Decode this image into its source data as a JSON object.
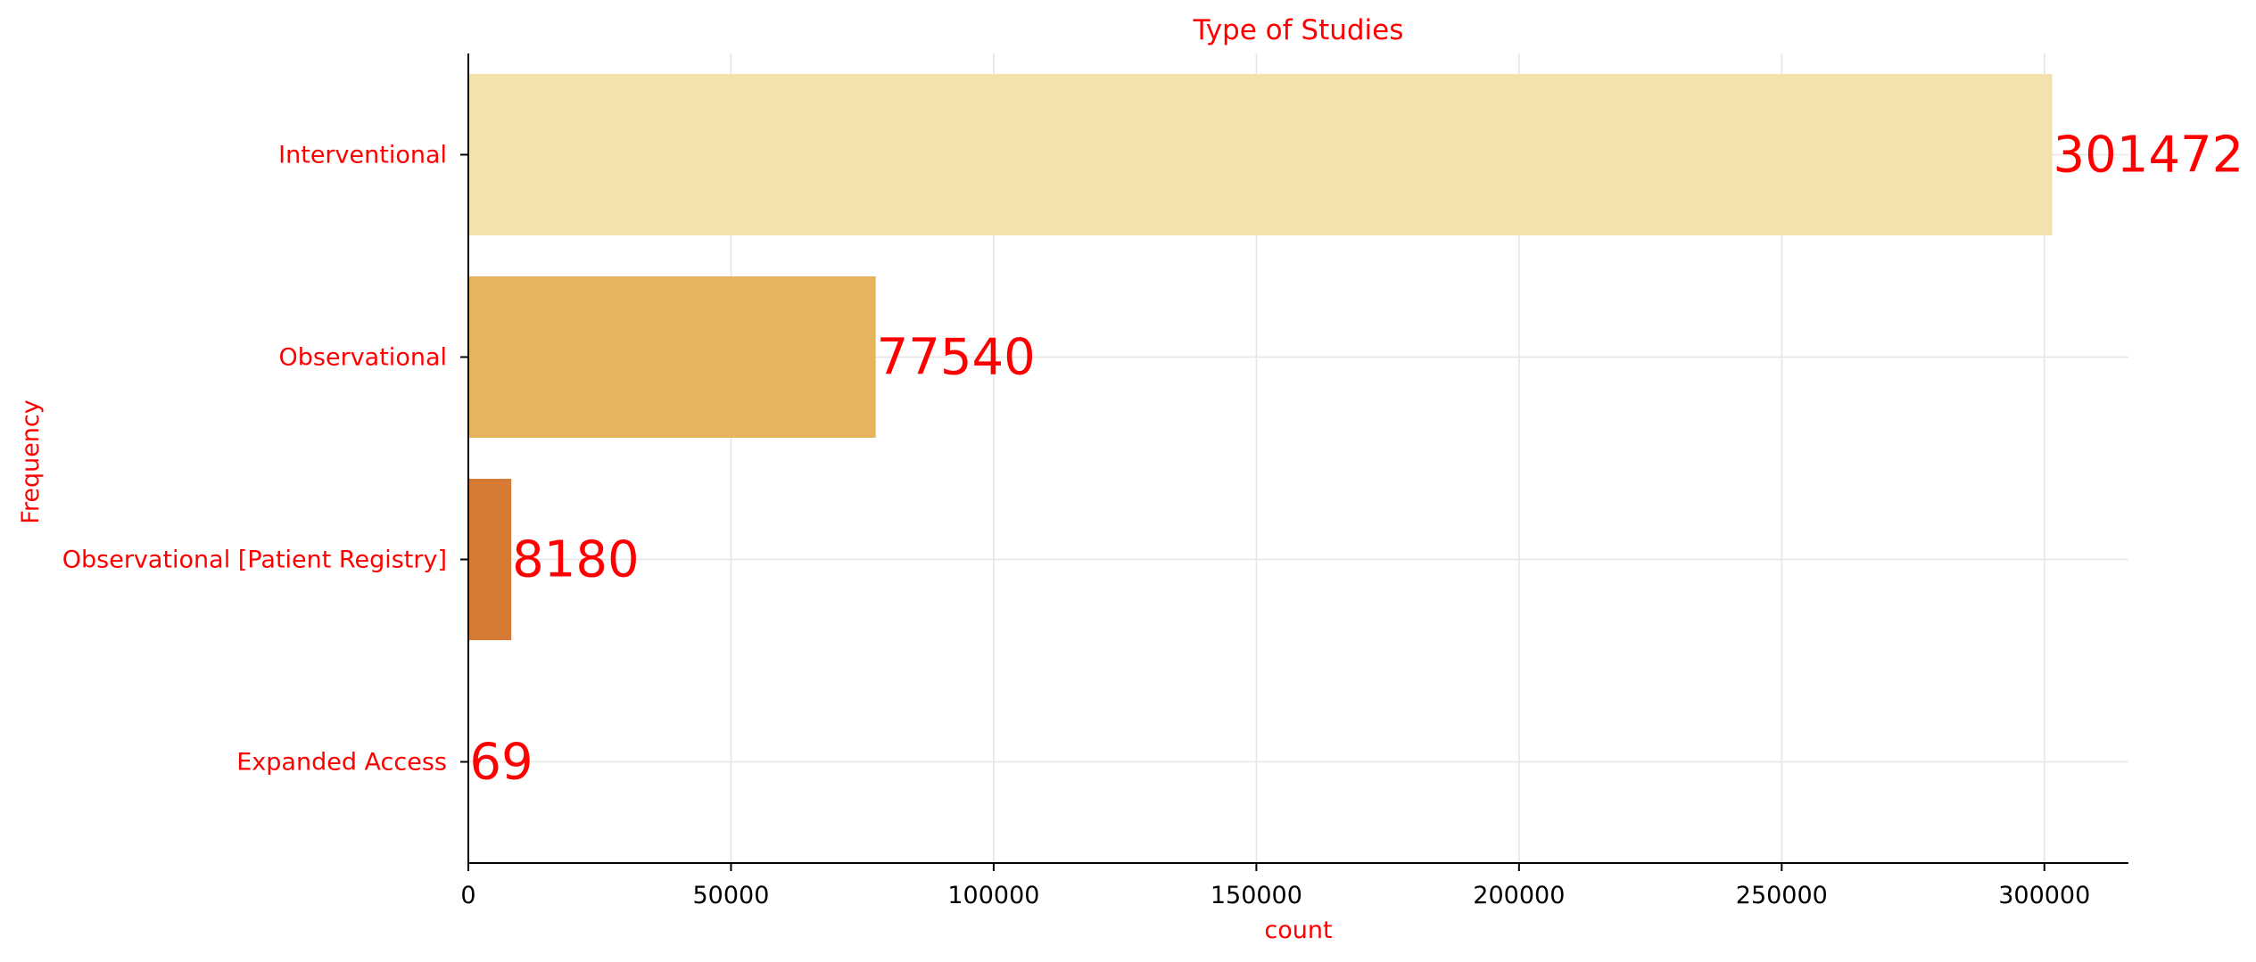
{
  "colors": {
    "text_accent": "#ff0000",
    "axis": "#000000",
    "grid": "#e6e6e6",
    "tick_text": "#000000",
    "bar_colors": [
      "#f2e3ad",
      "#e6b45f",
      "#d77a35",
      "#b74b2a"
    ]
  },
  "chart_data": {
    "type": "bar",
    "orientation": "horizontal",
    "title": "Type of Studies",
    "xlabel": "count",
    "ylabel": "Frequency",
    "categories": [
      "Interventional",
      "Observational",
      "Observational [Patient Registry]",
      "Expanded Access"
    ],
    "values": [
      301472,
      77540,
      8180,
      69
    ],
    "data_labels": [
      "301472",
      "77540",
      "8180",
      "69"
    ],
    "xlim": [
      0,
      316000
    ],
    "xticks": [
      0,
      50000,
      100000,
      150000,
      200000,
      250000,
      300000
    ],
    "xtick_labels": [
      "0",
      "50000",
      "100000",
      "150000",
      "200000",
      "250000",
      "300000"
    ],
    "grid": true
  }
}
